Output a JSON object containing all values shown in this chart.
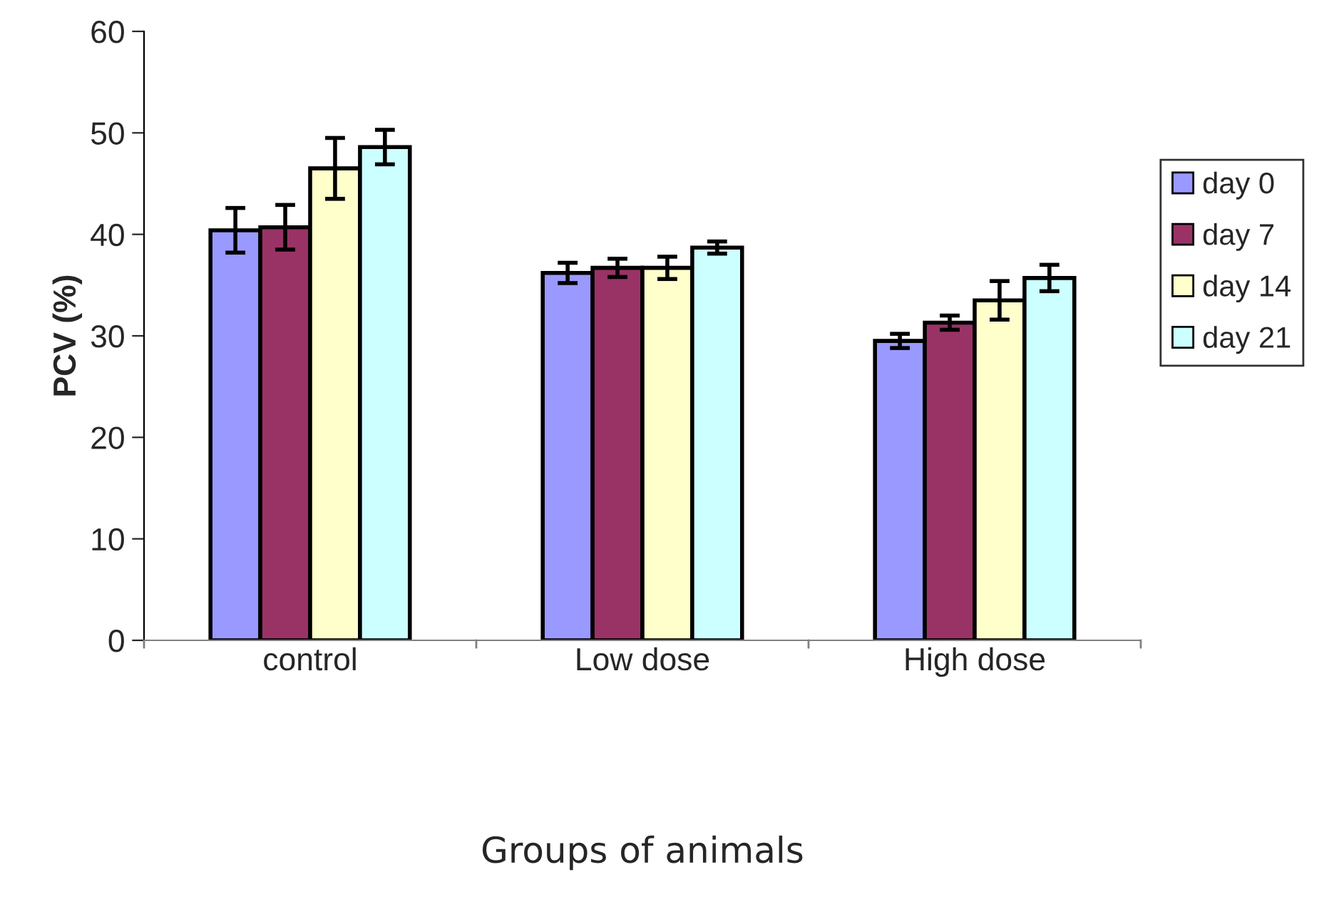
{
  "chart_data": {
    "type": "bar",
    "xlabel": "Groups of animals",
    "ylabel": "PCV (%)",
    "categories": [
      "control",
      "Low dose",
      "High dose"
    ],
    "series": [
      {
        "name": "day 0",
        "color": "#9999ff",
        "values": [
          40.4,
          36.2,
          29.5
        ],
        "errors": [
          2.2,
          1.0,
          0.7
        ]
      },
      {
        "name": "day 7",
        "color": "#993366",
        "values": [
          40.7,
          36.7,
          31.3
        ],
        "errors": [
          2.2,
          0.9,
          0.7
        ]
      },
      {
        "name": "day 14",
        "color": "#ffffcc",
        "values": [
          46.5,
          36.7,
          33.5
        ],
        "errors": [
          3.0,
          1.1,
          1.9
        ]
      },
      {
        "name": "day 21",
        "color": "#ccffff",
        "values": [
          48.6,
          38.7,
          35.7
        ],
        "errors": [
          1.7,
          0.6,
          1.3
        ]
      }
    ],
    "ylim": [
      0,
      60
    ],
    "yticks": [
      0,
      10,
      20,
      30,
      40,
      50,
      60
    ],
    "grid": false,
    "legend": "right"
  }
}
